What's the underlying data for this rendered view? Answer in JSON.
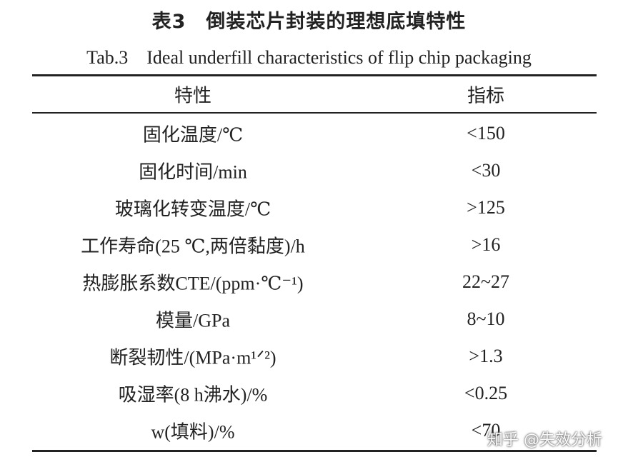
{
  "header": {
    "title": "表3　倒装芯片封装的理想底填特性",
    "subtitle": "Tab.3　Ideal underfill characteristics of flip chip packaging"
  },
  "table": {
    "columns": [
      "特性",
      "指标"
    ],
    "rows": [
      [
        "固化温度/℃",
        "<150"
      ],
      [
        "固化时间/min",
        "<30"
      ],
      [
        "玻璃化转变温度/℃",
        ">125"
      ],
      [
        "工作寿命(25 ℃,两倍黏度)/h",
        ">16"
      ],
      [
        "热膨胀系数CTE/(ppm·℃⁻¹)",
        "22~27"
      ],
      [
        "模量/GPa",
        "8~10"
      ],
      [
        "断裂韧性/(MPa·m¹ᐟ²)",
        ">1.3"
      ],
      [
        "吸湿率(8 h沸水)/%",
        "<0.25"
      ],
      [
        "w(填料)/%",
        "<70"
      ]
    ]
  },
  "watermark": "知乎 @失效分析"
}
